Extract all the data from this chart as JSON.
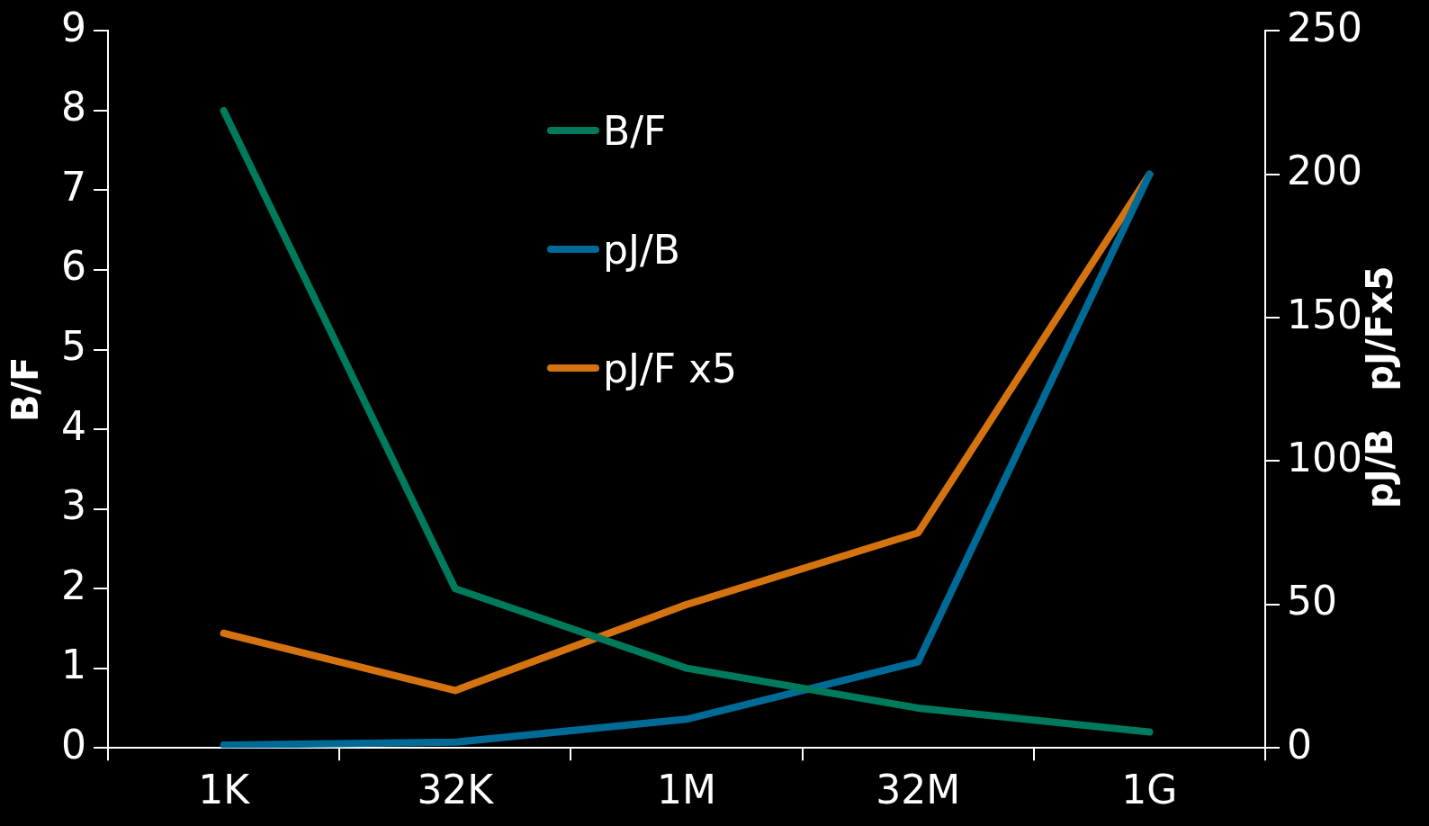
{
  "chart_data": {
    "type": "line",
    "ylabel": "B/F",
    "y2label": "pJ/B   pJ/Fx5",
    "categories": [
      "1K",
      "32K",
      "1M",
      "32M",
      "1G"
    ],
    "series": [
      {
        "name": "B/F",
        "color": "#007a5c",
        "values": [
          8,
          2,
          1,
          0.5,
          0.2
        ]
      },
      {
        "name": "pJ/B",
        "color": "#006a96",
        "axis": "y2",
        "values": [
          1,
          2,
          10,
          30,
          200
        ]
      },
      {
        "name": "pJ/F x5",
        "color": "#d4730f",
        "axis": "y2",
        "values": [
          40,
          20,
          50,
          75,
          200
        ]
      }
    ],
    "ylim": [
      0,
      9
    ],
    "yticks": [
      0,
      1,
      2,
      3,
      4,
      5,
      6,
      7,
      8,
      9
    ],
    "y2lim": [
      0,
      250
    ],
    "y2ticks": [
      0,
      50,
      100,
      150,
      200,
      250
    ],
    "grid": false,
    "legend": "top",
    "marker": "none",
    "line_style": "solid"
  }
}
